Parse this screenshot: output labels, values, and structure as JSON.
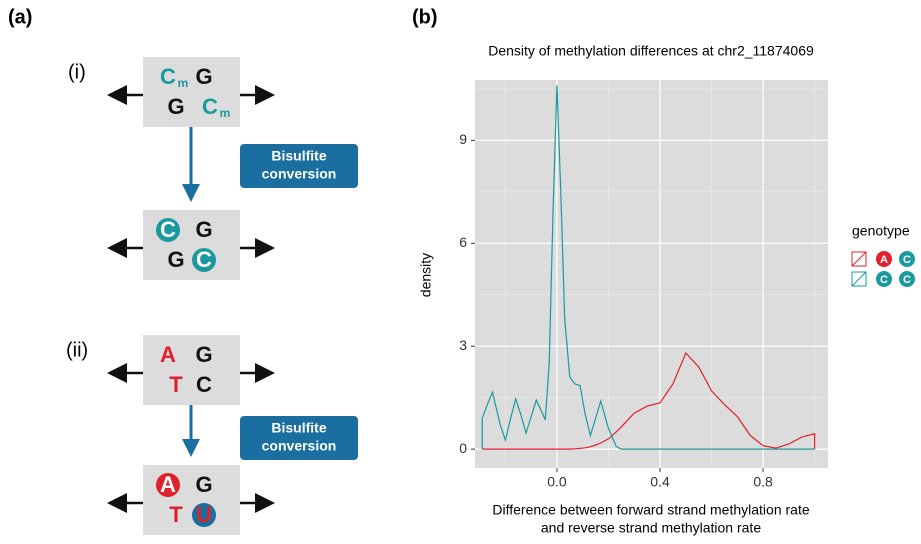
{
  "panel_a": {
    "label": "(a)",
    "steps": [
      {
        "label": "(i)",
        "before": [
          [
            {
              "text": "C",
              "sub": "m",
              "color": "#1a9aa0"
            },
            {
              "text": "G",
              "color": "#111111"
            }
          ],
          [
            {
              "text": "G",
              "color": "#111111"
            },
            {
              "text": "C",
              "sub": "m",
              "color": "#1a9aa0"
            }
          ]
        ],
        "conversion": [
          "Bisulfite",
          "conversion"
        ],
        "after": [
          [
            {
              "text": "C",
              "color": "#ffffff",
              "circle": "#1a9aa0"
            },
            {
              "text": "G",
              "color": "#111111"
            }
          ],
          [
            {
              "text": "G",
              "color": "#111111"
            },
            {
              "text": "C",
              "color": "#ffffff",
              "circle": "#1a9aa0"
            }
          ]
        ]
      },
      {
        "label": "(ii)",
        "before": [
          [
            {
              "text": "A",
              "color": "#e0202b"
            },
            {
              "text": "G",
              "color": "#111111"
            }
          ],
          [
            {
              "text": "T",
              "color": "#e0202b"
            },
            {
              "text": "C",
              "color": "#111111"
            }
          ]
        ],
        "conversion": [
          "Bisulfite",
          "conversion"
        ],
        "after": [
          [
            {
              "text": "A",
              "color": "#ffffff",
              "circle": "#e0202b"
            },
            {
              "text": "G",
              "color": "#111111"
            }
          ],
          [
            {
              "text": "T",
              "color": "#e0202b"
            },
            {
              "text": "U",
              "color": "#e0202b",
              "circle": "#1a6fa0"
            }
          ]
        ]
      }
    ]
  },
  "panel_b": {
    "label": "(b)"
  },
  "chart_data": {
    "type": "line",
    "title": "Density of methylation differences at chr2_11874069",
    "x_label": [
      "Difference between forward strand methylation rate",
      "and reverse strand methylation rate"
    ],
    "y_label": "density",
    "x": [
      -0.29,
      -0.29,
      -0.27,
      -0.25,
      -0.22,
      -0.2,
      -0.18,
      -0.16,
      -0.14,
      -0.12,
      -0.1,
      -0.08,
      -0.06,
      -0.045,
      -0.03,
      -0.015,
      0.0,
      0.015,
      0.03,
      0.05,
      0.07,
      0.09,
      0.11,
      0.13,
      0.15,
      0.17,
      0.2,
      0.23,
      0.25,
      0.3,
      0.35,
      0.4,
      0.45,
      0.5,
      0.55,
      0.6,
      0.65,
      0.7,
      0.75,
      0.8,
      0.85,
      0.9,
      0.95,
      1.0,
      1.0
    ],
    "series": [
      {
        "alleles": [
          "A",
          "C"
        ],
        "color": "#e0202b",
        "values": [
          0,
          0,
          0,
          0,
          0,
          0,
          0,
          0,
          0,
          0,
          0,
          0,
          0,
          0,
          0,
          0,
          0,
          0,
          0,
          0,
          0.01,
          0.02,
          0.04,
          0.07,
          0.12,
          0.18,
          0.3,
          0.5,
          0.65,
          1.05,
          1.25,
          1.35,
          1.9,
          2.8,
          2.4,
          1.7,
          1.3,
          0.95,
          0.4,
          0.1,
          0.03,
          0.15,
          0.35,
          0.45,
          0
        ]
      },
      {
        "alleles": [
          "C",
          "C"
        ],
        "color": "#1a9aa0",
        "values": [
          0,
          0.9,
          1.3,
          1.66,
          0.7,
          0.26,
          0.9,
          1.46,
          1.0,
          0.47,
          0.95,
          1.43,
          1.1,
          0.85,
          2.5,
          7.0,
          10.6,
          7.5,
          3.8,
          2.1,
          1.9,
          1.85,
          1.0,
          0.4,
          0.9,
          1.4,
          0.6,
          0.08,
          0,
          0,
          0,
          0,
          0,
          0,
          0,
          0,
          0,
          0,
          0,
          0,
          0,
          0,
          0,
          0,
          0
        ]
      }
    ],
    "legend": {
      "title": "genotype"
    },
    "xlim": [
      -0.318,
      1.052
    ],
    "ylim": [
      -0.55,
      10.76
    ],
    "xticks": [
      {
        "value": 0,
        "label": "0.0"
      },
      0.4,
      0.8
    ],
    "yticks": [
      0,
      3,
      6,
      9
    ],
    "grid": true,
    "background": "#dcdcdc"
  }
}
